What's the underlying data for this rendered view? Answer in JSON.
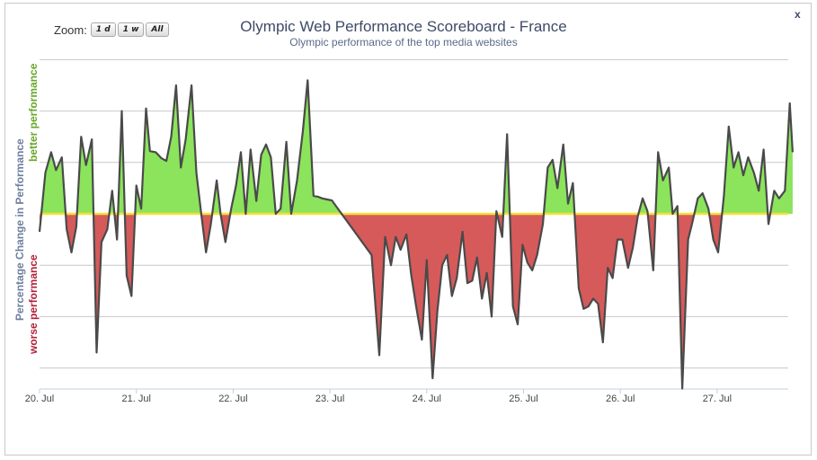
{
  "chart_data": {
    "type": "area",
    "title": "Olympic Web Performance Scoreboard - France",
    "subtitle": "Olympic performance of the top media websites",
    "ylabel": "Percentage Change in Performance",
    "ylabel_positive": "better performance",
    "ylabel_negative": "worse performance",
    "x_tick_labels": [
      "20. Jul",
      "21. Jul",
      "22. Jul",
      "23. Jul",
      "24. Jul",
      "25. Jul",
      "26. Jul",
      "27. Jul"
    ],
    "x_unit": "days since 20. Jul",
    "xlim": [
      0,
      7.78
    ],
    "ylim": [
      -3.4,
      3.0
    ],
    "gridlines_y": [
      -3,
      -2,
      -1,
      0,
      1,
      2,
      3
    ],
    "grid": true,
    "legend": "none",
    "colors": {
      "positive_fill": "#8be45c",
      "negative_fill": "#d65a5a",
      "line": "#4a4a4a",
      "zero_line": "#f3e13a"
    },
    "x": [
      0,
      0.06,
      0.12,
      0.17,
      0.23,
      0.28,
      0.33,
      0.38,
      0.43,
      0.48,
      0.54,
      0.59,
      0.64,
      0.7,
      0.75,
      0.8,
      0.85,
      0.9,
      0.95,
      1.0,
      1.05,
      1.1,
      1.14,
      1.2,
      1.26,
      1.31,
      1.36,
      1.41,
      1.46,
      1.51,
      1.57,
      1.62,
      1.67,
      1.72,
      1.77,
      1.83,
      1.87,
      1.92,
      1.98,
      2.03,
      2.08,
      2.13,
      2.18,
      2.24,
      2.29,
      2.34,
      2.39,
      2.44,
      2.49,
      2.55,
      2.6,
      2.66,
      2.72,
      2.77,
      2.83,
      2.88,
      2.92,
      2.97,
      3.02,
      3.43,
      3.51,
      3.57,
      3.63,
      3.68,
      3.73,
      3.79,
      3.84,
      3.89,
      3.95,
      4.0,
      4.06,
      4.11,
      4.16,
      4.21,
      4.26,
      4.31,
      4.37,
      4.42,
      4.47,
      4.52,
      4.57,
      4.62,
      4.67,
      4.72,
      4.78,
      4.83,
      4.89,
      4.94,
      4.99,
      5.04,
      5.09,
      5.14,
      5.2,
      5.25,
      5.3,
      5.35,
      5.41,
      5.46,
      5.51,
      5.57,
      5.62,
      5.67,
      5.72,
      5.77,
      5.82,
      5.87,
      5.92,
      5.97,
      6.02,
      6.08,
      6.13,
      6.18,
      6.23,
      6.28,
      6.34,
      6.39,
      6.44,
      6.5,
      6.54,
      6.59,
      6.64,
      6.7,
      6.74,
      6.8,
      6.85,
      6.91,
      6.96,
      7.01,
      7.07,
      7.12,
      7.17,
      7.22,
      7.27,
      7.32,
      7.38,
      7.43,
      7.48,
      7.53,
      7.59,
      7.64,
      7.7,
      7.75,
      7.78
    ],
    "y": [
      -0.35,
      0.8,
      1.2,
      0.85,
      1.1,
      -0.3,
      -0.75,
      -0.25,
      1.5,
      0.95,
      1.45,
      -2.7,
      -0.55,
      -0.3,
      0.45,
      -0.5,
      2.0,
      -1.2,
      -1.6,
      0.55,
      0.1,
      2.05,
      1.22,
      1.2,
      1.08,
      1.03,
      1.5,
      2.5,
      0.9,
      1.45,
      2.5,
      0.8,
      0.0,
      -0.75,
      -0.2,
      0.65,
      0.0,
      -0.55,
      0.1,
      0.55,
      1.2,
      0.0,
      1.25,
      0.25,
      1.15,
      1.35,
      1.1,
      0.0,
      0.1,
      1.4,
      0.0,
      0.65,
      1.6,
      2.6,
      0.35,
      0.33,
      0.3,
      0.28,
      0.26,
      -0.8,
      -2.75,
      -0.45,
      -1.0,
      -0.45,
      -0.7,
      -0.4,
      -1.2,
      -1.8,
      -2.45,
      -0.9,
      -3.2,
      -1.9,
      -1.0,
      -0.8,
      -1.6,
      -1.25,
      -0.35,
      -1.35,
      -1.3,
      -0.85,
      -1.65,
      -1.15,
      -2.0,
      0.05,
      -0.45,
      1.55,
      -1.8,
      -2.15,
      -0.6,
      -0.95,
      -1.1,
      -0.8,
      -0.2,
      0.9,
      1.05,
      0.5,
      1.35,
      0.2,
      0.6,
      -1.45,
      -1.85,
      -1.8,
      -1.65,
      -1.75,
      -2.5,
      -1.05,
      -1.25,
      -0.5,
      -0.5,
      -1.05,
      -0.65,
      -0.05,
      0.3,
      0.05,
      -1.1,
      1.2,
      0.65,
      0.9,
      0.0,
      0.15,
      -3.4,
      -0.5,
      -0.2,
      0.3,
      0.4,
      0.1,
      -0.5,
      -0.75,
      0.35,
      1.7,
      0.9,
      1.2,
      0.75,
      1.1,
      0.8,
      0.45,
      1.25,
      -0.2,
      0.45,
      0.3,
      0.45,
      2.15,
      1.2
    ]
  },
  "ui": {
    "zoom_label": "Zoom:",
    "zoom_buttons": [
      "1 d",
      "1 w",
      "All"
    ],
    "close_label": "x"
  }
}
